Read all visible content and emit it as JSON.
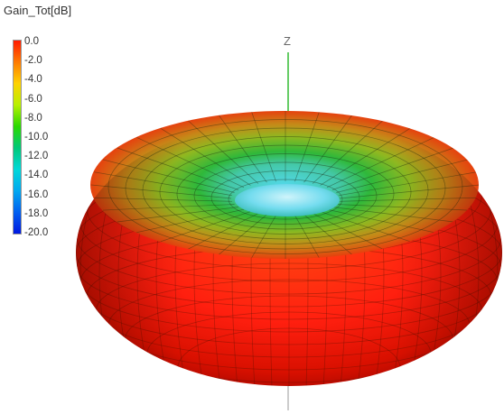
{
  "legend": {
    "title": "Gain_Tot[dB]",
    "ticks": [
      "0.0",
      "-2.0",
      "-4.0",
      "-6.0",
      "-8.0",
      "-10.0",
      "-12.0",
      "-14.0",
      "-16.0",
      "-18.0",
      "-20.0"
    ],
    "gradient_colors": [
      "#ff1a00",
      "#ff7a00",
      "#ffd200",
      "#b8f000",
      "#2ad800",
      "#00c878",
      "#00d8d8",
      "#00a8f0",
      "#0060f0",
      "#0018e0"
    ]
  },
  "axis": {
    "z_label": "Z"
  },
  "surface": {
    "shape": "toroid",
    "inner_color": "#52d8e8",
    "mid_color": "#2fb83a",
    "outer_color": "#ff1f0f",
    "mesh_color": "#333333"
  }
}
